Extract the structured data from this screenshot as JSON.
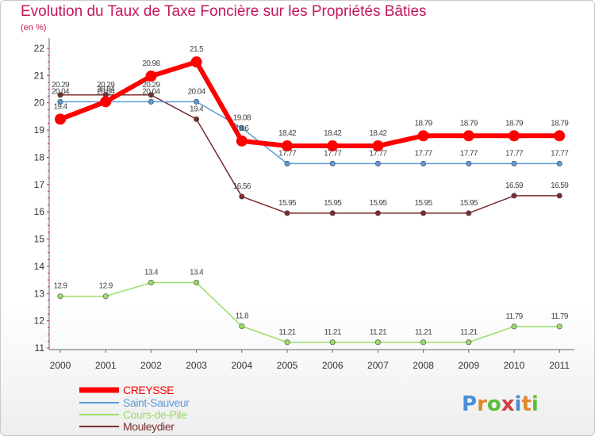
{
  "title": "Evolution du Taux de Taxe Foncière sur les Propriétés Bâties",
  "subtitle": "(en %)",
  "brand": "Proxiti",
  "chart_data": {
    "type": "line",
    "title": "Evolution du Taux de Taxe Foncière sur les Propriétés Bâties",
    "ylabel": "(en %)",
    "xlabel": "",
    "x": [
      "2000",
      "2001",
      "2002",
      "2003",
      "2004",
      "2005",
      "2006",
      "2007",
      "2008",
      "2009",
      "2010",
      "2011"
    ],
    "ylim": [
      11,
      22
    ],
    "yticks": [
      "11",
      "12",
      "13",
      "14",
      "15",
      "16",
      "17",
      "18",
      "19",
      "20",
      "21",
      "22"
    ],
    "grid": false,
    "legend_position": "bottom-left",
    "series": [
      {
        "name": "CREYSSE",
        "color": "#ff0000",
        "values": [
          19.4,
          20.04,
          20.98,
          21.5,
          18.6,
          18.42,
          18.42,
          18.42,
          18.79,
          18.79,
          18.79,
          18.79
        ],
        "labels": [
          "19.4",
          "20.04",
          "20.98",
          "21.5",
          "18.6",
          "18.42",
          "18.42",
          "18.42",
          "18.79",
          "18.79",
          "18.79",
          "18.79"
        ]
      },
      {
        "name": "Saint-Sauveur",
        "color": "#5b9bd5",
        "values": [
          20.04,
          20.04,
          20.04,
          20.04,
          19.08,
          17.77,
          17.77,
          17.77,
          17.77,
          17.77,
          17.77,
          17.77
        ],
        "labels": [
          "20.04",
          "20.04",
          "20.04",
          "20.04",
          "19.08",
          "17.77",
          "17.77",
          "17.77",
          "17.77",
          "17.77",
          "17.77",
          "17.77"
        ]
      },
      {
        "name": "Cours-de-Pile",
        "color": "#99dd66",
        "values": [
          12.9,
          12.9,
          13.4,
          13.4,
          11.8,
          11.21,
          11.21,
          11.21,
          11.21,
          11.21,
          11.79,
          11.79
        ],
        "labels": [
          "12.9",
          "12.9",
          "13.4",
          "13.4",
          "11.8",
          "11.21",
          "11.21",
          "11.21",
          "11.21",
          "11.21",
          "11.79",
          "11.79"
        ]
      },
      {
        "name": "Mouleydier",
        "color": "#7b2c2c",
        "values": [
          20.29,
          20.29,
          20.29,
          19.4,
          16.56,
          15.95,
          15.95,
          15.95,
          15.95,
          15.95,
          16.59,
          16.59
        ],
        "labels": [
          "20.29",
          "20.29",
          "20.29",
          "19.4",
          "16.56",
          "15.95",
          "15.95",
          "15.95",
          "15.95",
          "15.95",
          "16.59",
          "16.59"
        ]
      }
    ]
  }
}
